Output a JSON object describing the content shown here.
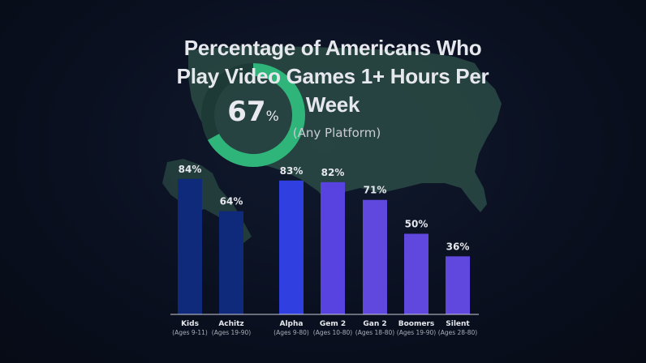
{
  "headline": {
    "title_line1": "Percentage of Americans Who",
    "title_line2": "Play Video Games 1+ Hours Per",
    "title_line3": "Week",
    "subtitle": "(Any Platform)"
  },
  "donut": {
    "value": 67,
    "value_text": "67",
    "unit": "%"
  },
  "colors": {
    "dark_bar": "#0f2a7a",
    "blue_bar": "#2f3fe0",
    "purple_bar": "#6047de",
    "donut_green": "#2fb57a",
    "map": "#2c4b45"
  },
  "chart_data": {
    "type": "bar",
    "title": "Percentage of Americans Who Play Video Games 1+ Hours Per Week",
    "subtitle": "(Any Platform)",
    "ylim": [
      0,
      100
    ],
    "grid": false,
    "categories": [
      "Kids",
      "Achitz",
      "Alpha",
      "Gem 2",
      "Gan 2",
      "Boomers",
      "Silent"
    ],
    "sublabels": [
      "(Ages 9-11)",
      "(Ages 19-90)",
      "(Ages 9-80)",
      "(Ages 10-80)",
      "(Ages 18-80)",
      "(Ages 19-90)",
      "(Ages 28-80)"
    ],
    "values": [
      84,
      64,
      83,
      82,
      71,
      50,
      36
    ],
    "value_labels": [
      "84%",
      "64%",
      "83%",
      "82%",
      "71%",
      "50%",
      "36%"
    ],
    "bar_colors": [
      "#0f2a7a",
      "#0f2a7a",
      "#2f3fe0",
      "#5842e0",
      "#6047de",
      "#6047de",
      "#6047de"
    ]
  }
}
